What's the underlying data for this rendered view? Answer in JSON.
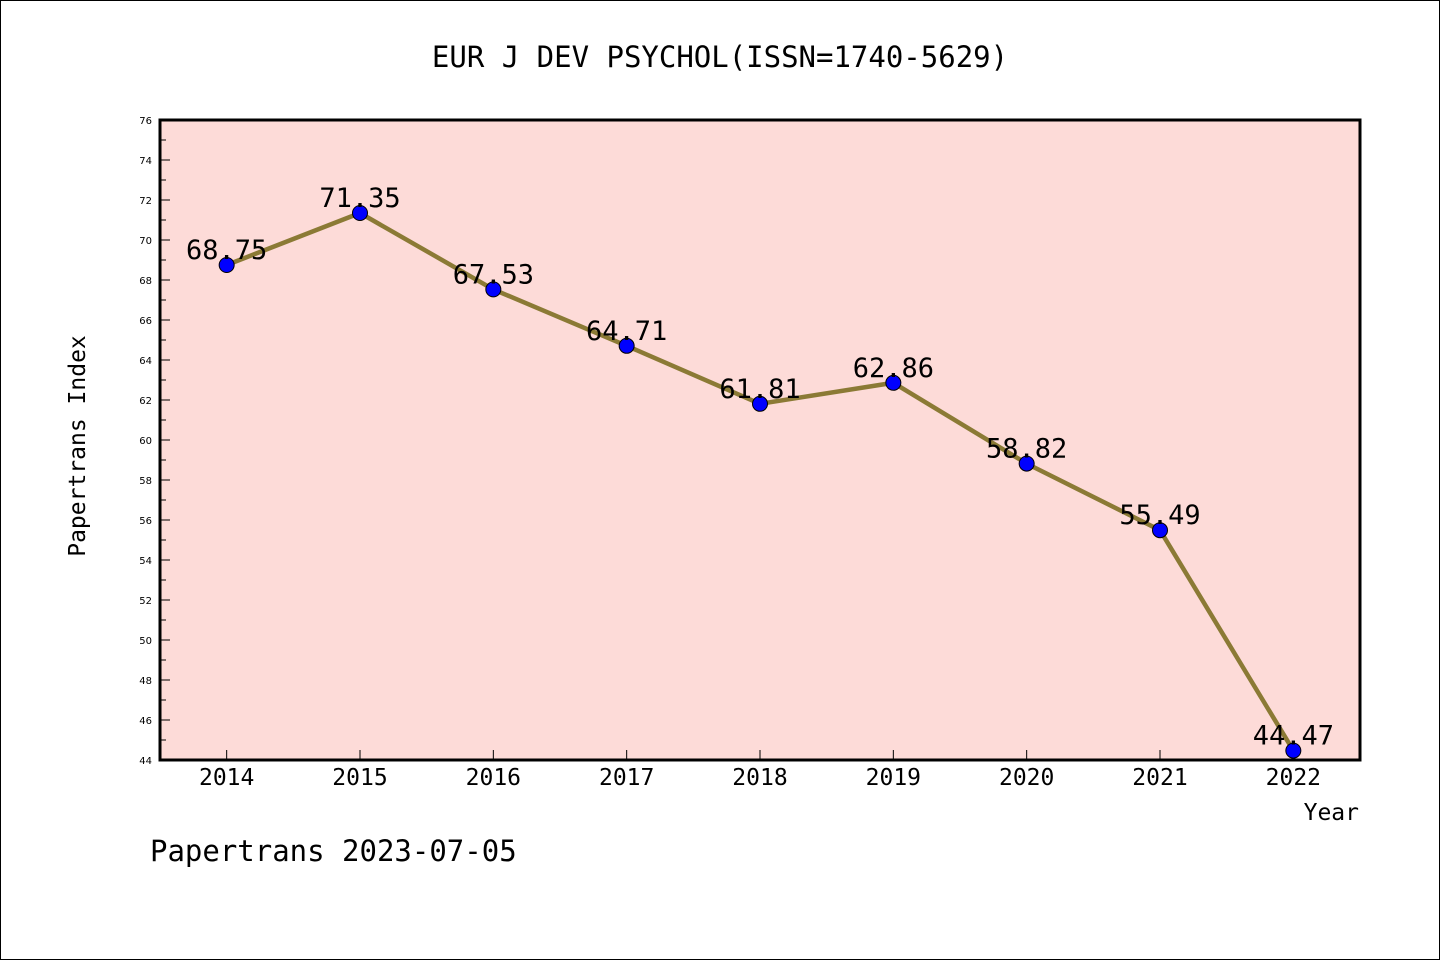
{
  "chart_data": {
    "type": "line",
    "title": "EUR J DEV PSYCHOL(ISSN=1740-5629)",
    "xlabel": "Year",
    "ylabel": "Papertrans Index",
    "categories": [
      "2014",
      "2015",
      "2016",
      "2017",
      "2018",
      "2019",
      "2020",
      "2021",
      "2022"
    ],
    "values": [
      68.75,
      71.35,
      67.53,
      64.71,
      61.81,
      62.86,
      58.82,
      55.49,
      44.47
    ],
    "data_labels": [
      "68.75",
      "71.35",
      "67.53",
      "64.71",
      "61.81",
      "62.86",
      "58.82",
      "55.49",
      "44.47"
    ],
    "ylim": [
      44,
      76
    ],
    "yticks": [
      "44",
      "46",
      "48",
      "50",
      "52",
      "54",
      "56",
      "58",
      "60",
      "62",
      "64",
      "66",
      "68",
      "70",
      "72",
      "74",
      "76"
    ],
    "grid": false,
    "colors": {
      "plot_background": "#fddbd8",
      "line": "#8b7a35",
      "marker": "#0000ff"
    }
  },
  "footer": "Papertrans 2023-07-05"
}
